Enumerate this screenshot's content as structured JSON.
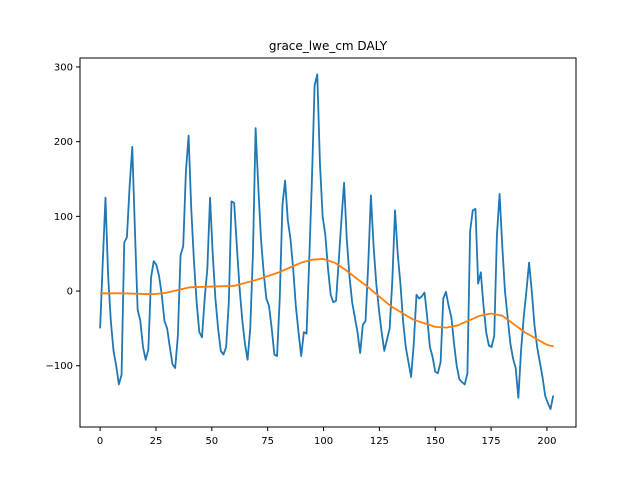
{
  "chart_data": {
    "type": "line",
    "title": "grace_lwe_cm DALY",
    "xlabel": "",
    "ylabel": "",
    "xlim": [
      -9,
      213
    ],
    "ylim": [
      -182,
      312
    ],
    "xticks": [
      0,
      25,
      50,
      75,
      100,
      125,
      150,
      175,
      200
    ],
    "yticks": [
      -100,
      0,
      100,
      200,
      300
    ],
    "xtick_labels": [
      "0",
      "25",
      "50",
      "75",
      "100",
      "125",
      "150",
      "175",
      "200"
    ],
    "ytick_labels": [
      "−100",
      "0",
      "100",
      "200",
      "300"
    ],
    "grid": false,
    "legend": "none",
    "series": [
      {
        "color": "#1f77b4",
        "points": [
          [
            0,
            -50
          ],
          [
            1,
            40
          ],
          [
            2,
            125
          ],
          [
            3,
            20
          ],
          [
            4,
            -40
          ],
          [
            5,
            -80
          ],
          [
            6,
            -100
          ],
          [
            7,
            -125
          ],
          [
            8,
            -112
          ],
          [
            9,
            65
          ],
          [
            10,
            72
          ],
          [
            11,
            140
          ],
          [
            12,
            193
          ],
          [
            13,
            80
          ],
          [
            14,
            -25
          ],
          [
            15,
            -40
          ],
          [
            16,
            -75
          ],
          [
            17,
            -92
          ],
          [
            18,
            -78
          ],
          [
            19,
            18
          ],
          [
            20,
            40
          ],
          [
            21,
            35
          ],
          [
            22,
            20
          ],
          [
            23,
            -5
          ],
          [
            24,
            -40
          ],
          [
            25,
            -50
          ],
          [
            26,
            -75
          ],
          [
            27,
            -98
          ],
          [
            28,
            -103
          ],
          [
            29,
            -60
          ],
          [
            30,
            48
          ],
          [
            31,
            60
          ],
          [
            32,
            160
          ],
          [
            33,
            208
          ],
          [
            34,
            110
          ],
          [
            35,
            40
          ],
          [
            36,
            -15
          ],
          [
            37,
            -55
          ],
          [
            38,
            -62
          ],
          [
            39,
            -10
          ],
          [
            40,
            30
          ],
          [
            41,
            125
          ],
          [
            42,
            50
          ],
          [
            43,
            -10
          ],
          [
            44,
            -50
          ],
          [
            45,
            -80
          ],
          [
            46,
            -85
          ],
          [
            47,
            -75
          ],
          [
            48,
            -15
          ],
          [
            49,
            120
          ],
          [
            50,
            118
          ],
          [
            51,
            60
          ],
          [
            52,
            5
          ],
          [
            53,
            -38
          ],
          [
            54,
            -70
          ],
          [
            55,
            -92
          ],
          [
            56,
            -50
          ],
          [
            57,
            50
          ],
          [
            58,
            218
          ],
          [
            59,
            140
          ],
          [
            60,
            70
          ],
          [
            61,
            25
          ],
          [
            62,
            -10
          ],
          [
            63,
            -20
          ],
          [
            64,
            -50
          ],
          [
            65,
            -85
          ],
          [
            66,
            -87
          ],
          [
            67,
            -10
          ],
          [
            68,
            115
          ],
          [
            69,
            148
          ],
          [
            70,
            95
          ],
          [
            71,
            70
          ],
          [
            72,
            30
          ],
          [
            73,
            -20
          ],
          [
            74,
            -55
          ],
          [
            75,
            -87
          ],
          [
            76,
            -55
          ],
          [
            77,
            -57
          ],
          [
            78,
            42
          ],
          [
            79,
            148
          ],
          [
            80,
            275
          ],
          [
            81,
            290
          ],
          [
            82,
            170
          ],
          [
            83,
            100
          ],
          [
            84,
            75
          ],
          [
            85,
            30
          ],
          [
            86,
            -5
          ],
          [
            87,
            -15
          ],
          [
            88,
            -13
          ],
          [
            89,
            40
          ],
          [
            90,
            95
          ],
          [
            91,
            145
          ],
          [
            92,
            70
          ],
          [
            93,
            20
          ],
          [
            94,
            -15
          ],
          [
            95,
            -35
          ],
          [
            96,
            -55
          ],
          [
            97,
            -83
          ],
          [
            98,
            -45
          ],
          [
            99,
            -40
          ],
          [
            100,
            35
          ],
          [
            101,
            128
          ],
          [
            102,
            60
          ],
          [
            103,
            10
          ],
          [
            104,
            -25
          ],
          [
            105,
            -55
          ],
          [
            106,
            -80
          ],
          [
            107,
            -65
          ],
          [
            108,
            -50
          ],
          [
            109,
            15
          ],
          [
            110,
            108
          ],
          [
            111,
            50
          ],
          [
            112,
            10
          ],
          [
            113,
            -40
          ],
          [
            114,
            -75
          ],
          [
            115,
            -95
          ],
          [
            116,
            -115
          ],
          [
            117,
            -70
          ],
          [
            118,
            -5
          ],
          [
            119,
            -10
          ],
          [
            120,
            -7
          ],
          [
            121,
            -2
          ],
          [
            122,
            -35
          ],
          [
            123,
            -75
          ],
          [
            124,
            -88
          ],
          [
            125,
            -108
          ],
          [
            126,
            -110
          ],
          [
            127,
            -95
          ],
          [
            128,
            -10
          ],
          [
            129,
            -1
          ],
          [
            130,
            -20
          ],
          [
            131,
            -35
          ],
          [
            132,
            -70
          ],
          [
            133,
            -100
          ],
          [
            134,
            -118
          ],
          [
            135,
            -122
          ],
          [
            136,
            -125
          ],
          [
            137,
            -110
          ],
          [
            138,
            80
          ],
          [
            139,
            108
          ],
          [
            140,
            110
          ],
          [
            141,
            10
          ],
          [
            142,
            25
          ],
          [
            143,
            -20
          ],
          [
            144,
            -55
          ],
          [
            145,
            -73
          ],
          [
            146,
            -75
          ],
          [
            147,
            -60
          ],
          [
            148,
            75
          ],
          [
            149,
            130
          ],
          [
            150,
            60
          ],
          [
            151,
            0
          ],
          [
            152,
            -35
          ],
          [
            153,
            -70
          ],
          [
            154,
            -90
          ],
          [
            155,
            -103
          ],
          [
            156,
            -143
          ],
          [
            157,
            -80
          ],
          [
            158,
            -35
          ],
          [
            159,
            0
          ],
          [
            160,
            38
          ],
          [
            161,
            0
          ],
          [
            162,
            -45
          ],
          [
            163,
            -75
          ],
          [
            164,
            -95
          ],
          [
            165,
            -115
          ],
          [
            166,
            -140
          ],
          [
            167,
            -150
          ],
          [
            168,
            -158
          ],
          [
            169,
            -140
          ]
        ],
        "x_scale": 1.2
      },
      {
        "color": "#ff7f0e",
        "points": [
          [
            0,
            -3
          ],
          [
            10,
            -3
          ],
          [
            20,
            -4
          ],
          [
            25,
            -4
          ],
          [
            30,
            -2
          ],
          [
            40,
            5
          ],
          [
            50,
            6
          ],
          [
            60,
            7
          ],
          [
            70,
            15
          ],
          [
            80,
            25
          ],
          [
            90,
            38
          ],
          [
            95,
            42
          ],
          [
            100,
            43
          ],
          [
            105,
            38
          ],
          [
            110,
            28
          ],
          [
            120,
            5
          ],
          [
            130,
            -20
          ],
          [
            140,
            -38
          ],
          [
            150,
            -48
          ],
          [
            155,
            -49
          ],
          [
            160,
            -46
          ],
          [
            170,
            -33
          ],
          [
            175,
            -30
          ],
          [
            180,
            -33
          ],
          [
            190,
            -55
          ],
          [
            200,
            -72
          ],
          [
            203,
            -74
          ]
        ]
      }
    ]
  }
}
